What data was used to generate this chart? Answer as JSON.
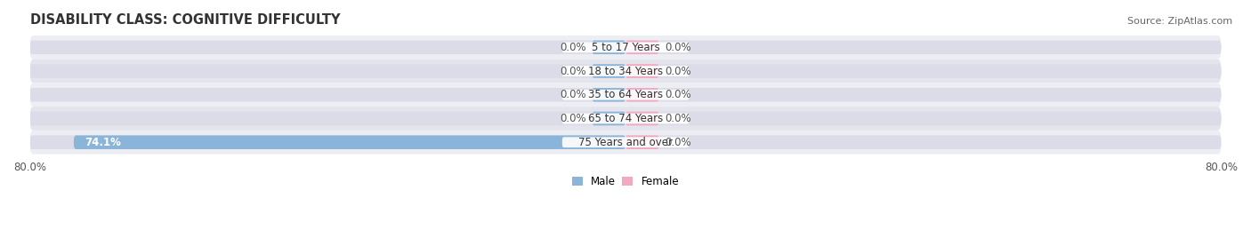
{
  "title": "DISABILITY CLASS: COGNITIVE DIFFICULTY",
  "source": "Source: ZipAtlas.com",
  "categories": [
    "5 to 17 Years",
    "18 to 34 Years",
    "35 to 64 Years",
    "65 to 74 Years",
    "75 Years and over"
  ],
  "male_values": [
    0.0,
    0.0,
    0.0,
    0.0,
    74.1
  ],
  "female_values": [
    0.0,
    0.0,
    0.0,
    0.0,
    0.0
  ],
  "male_color": "#8ab4d8",
  "female_color": "#f2a8be",
  "bar_bg_color": "#dcdce8",
  "axis_limit": 80.0,
  "title_fontsize": 10.5,
  "source_fontsize": 8,
  "label_fontsize": 8.5,
  "category_fontsize": 8.5,
  "bar_height": 0.58,
  "background_color": "#ffffff",
  "row_bg_even": "#ededf4",
  "row_bg_odd": "#e4e4ed",
  "male_label": "Male",
  "female_label": "Female",
  "min_bar_width": 4.5,
  "center_label_bg": "#ffffff",
  "value_label_color": "#555555",
  "inside_value_color": "#ffffff"
}
